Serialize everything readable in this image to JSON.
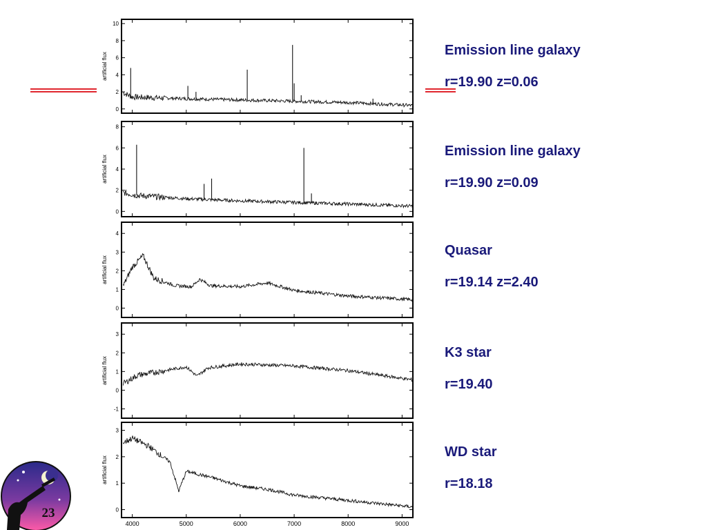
{
  "slide": {
    "number": "23",
    "accent_color": "#e0252d",
    "text_color": "#1a1a7a"
  },
  "captions": [
    {
      "name": "Emission line galaxy",
      "meta": "r=19.90 z=0.06"
    },
    {
      "name": "Emission line galaxy",
      "meta": "r=19.90 z=0.09"
    },
    {
      "name": "Quasar",
      "meta": "r=19.14 z=2.40"
    },
    {
      "name": "K3 star",
      "meta": "r=19.40"
    },
    {
      "name": "WD star",
      "meta": "r=18.18"
    }
  ],
  "chart_data": [
    {
      "type": "line",
      "ylabel": "artificial flux",
      "xlim": [
        3800,
        9200
      ],
      "ylim": [
        -0.5,
        10.5
      ],
      "yticks": [
        "0",
        "2",
        "4",
        "6",
        "8",
        "10"
      ],
      "continuum": [
        [
          3800,
          2.0
        ],
        [
          4000,
          1.4
        ],
        [
          5000,
          1.2
        ],
        [
          6000,
          1.05
        ],
        [
          7000,
          0.9
        ],
        [
          8000,
          0.75
        ],
        [
          9200,
          0.4
        ]
      ],
      "lines": [
        [
          3970,
          4.8
        ],
        [
          5030,
          2.7
        ],
        [
          5180,
          2.0
        ],
        [
          6130,
          4.6
        ],
        [
          6970,
          7.5
        ],
        [
          7000,
          3.0
        ],
        [
          7130,
          1.6
        ],
        [
          8460,
          1.2
        ]
      ]
    },
    {
      "type": "line",
      "ylabel": "artificial flux",
      "xlim": [
        3800,
        9200
      ],
      "ylim": [
        -0.5,
        8.5
      ],
      "yticks": [
        "0",
        "2",
        "4",
        "6",
        "8"
      ],
      "continuum": [
        [
          3800,
          1.8
        ],
        [
          4100,
          1.5
        ],
        [
          5000,
          1.2
        ],
        [
          6000,
          1.0
        ],
        [
          7000,
          0.85
        ],
        [
          8000,
          0.7
        ],
        [
          9200,
          0.5
        ]
      ],
      "lines": [
        [
          4080,
          6.3
        ],
        [
          5330,
          2.6
        ],
        [
          5470,
          3.1
        ],
        [
          7180,
          6.0
        ],
        [
          7320,
          1.7
        ]
      ]
    },
    {
      "type": "line",
      "ylabel": "artificial flux",
      "xlim": [
        3800,
        9200
      ],
      "ylim": [
        -0.5,
        4.6
      ],
      "yticks": [
        "0",
        "1",
        "2",
        "3",
        "4"
      ],
      "continuum": [
        [
          3800,
          1.0
        ],
        [
          4000,
          2.2
        ],
        [
          4200,
          2.8
        ],
        [
          4400,
          1.6
        ],
        [
          4800,
          1.2
        ],
        [
          5100,
          1.15
        ],
        [
          5250,
          1.55
        ],
        [
          5450,
          1.2
        ],
        [
          6000,
          1.15
        ],
        [
          6500,
          1.35
        ],
        [
          7000,
          0.95
        ],
        [
          8000,
          0.65
        ],
        [
          9200,
          0.45
        ]
      ],
      "lines": []
    },
    {
      "type": "line",
      "ylabel": "artificial flux",
      "xlim": [
        3800,
        9200
      ],
      "ylim": [
        -1.5,
        3.6
      ],
      "yticks": [
        "-1",
        "0",
        "1",
        "2",
        "3"
      ],
      "continuum": [
        [
          3800,
          0.3
        ],
        [
          4100,
          0.8
        ],
        [
          4500,
          1.0
        ],
        [
          5000,
          1.25
        ],
        [
          5200,
          0.75
        ],
        [
          5400,
          1.2
        ],
        [
          6000,
          1.4
        ],
        [
          7000,
          1.3
        ],
        [
          8000,
          1.05
        ],
        [
          9200,
          0.55
        ]
      ],
      "lines": []
    },
    {
      "type": "line",
      "ylabel": "artificial flux",
      "xlabel_ticks": [
        "4000",
        "5000",
        "6000",
        "7000",
        "8000",
        "9000"
      ],
      "xlim": [
        3800,
        9200
      ],
      "ylim": [
        -0.3,
        3.3
      ],
      "yticks": [
        "0",
        "1",
        "2",
        "3"
      ],
      "continuum": [
        [
          3800,
          2.5
        ],
        [
          4000,
          2.7
        ],
        [
          4300,
          2.4
        ],
        [
          4700,
          1.8
        ],
        [
          4860,
          0.7
        ],
        [
          5000,
          1.45
        ],
        [
          5500,
          1.2
        ],
        [
          6000,
          0.9
        ],
        [
          6560,
          0.75
        ],
        [
          7000,
          0.55
        ],
        [
          8000,
          0.35
        ],
        [
          9200,
          0.1
        ]
      ],
      "lines": []
    }
  ]
}
